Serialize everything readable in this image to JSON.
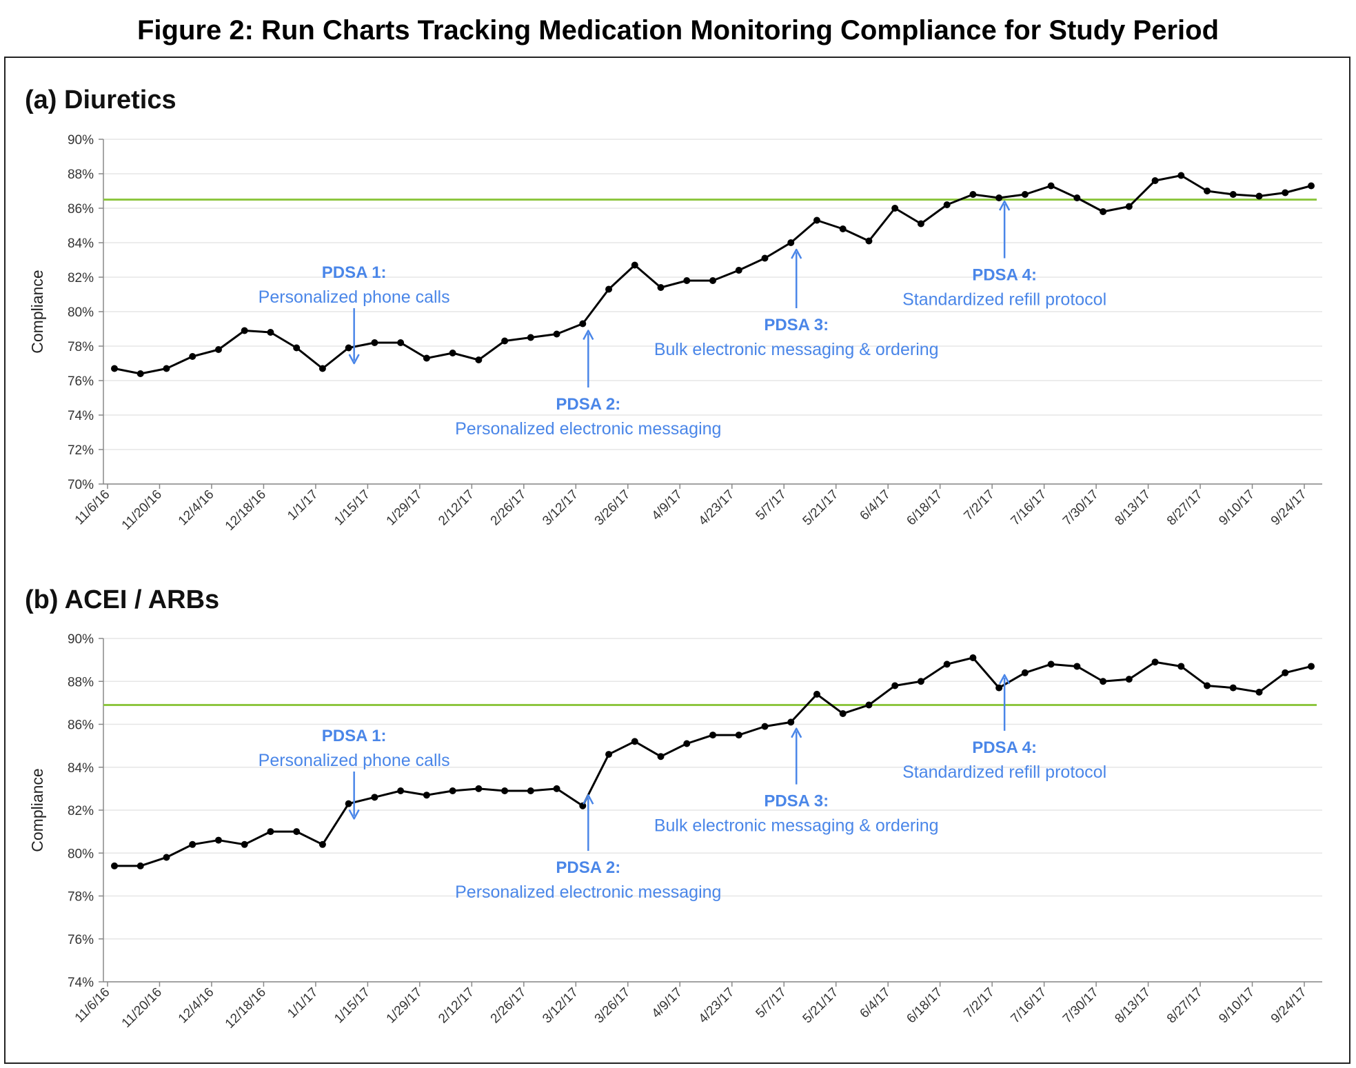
{
  "figure_title": "Figure 2: Run Charts Tracking Medication Monitoring Compliance for Study Period",
  "colors": {
    "series": "#000000",
    "target_line": "#8dc63f",
    "annotation": "#4a86e8",
    "grid": "#e6e6e6"
  },
  "chart_data": [
    {
      "type": "line",
      "title": "(a) Diuretics",
      "ylabel": "Compliance",
      "xlabel": "",
      "ylim": [
        70,
        90
      ],
      "y_ticks": [
        70,
        72,
        74,
        76,
        78,
        80,
        82,
        84,
        86,
        88,
        90
      ],
      "y_tick_labels": [
        "70%",
        "72%",
        "74%",
        "76%",
        "78%",
        "80%",
        "82%",
        "84%",
        "86%",
        "88%",
        "90%"
      ],
      "x": [
        "11/6/16",
        "11/13/16",
        "11/20/16",
        "11/27/16",
        "12/4/16",
        "12/11/16",
        "12/18/16",
        "12/25/16",
        "1/1/17",
        "1/8/17",
        "1/15/17",
        "1/22/17",
        "1/29/17",
        "2/5/17",
        "2/12/17",
        "2/19/17",
        "2/26/17",
        "3/5/17",
        "3/12/17",
        "3/19/17",
        "3/26/17",
        "4/2/17",
        "4/9/17",
        "4/16/17",
        "4/23/17",
        "4/30/17",
        "5/7/17",
        "5/14/17",
        "5/21/17",
        "5/28/17",
        "6/4/17",
        "6/11/17",
        "6/18/17",
        "6/25/17",
        "7/2/17",
        "7/9/17",
        "7/16/17",
        "7/23/17",
        "7/30/17",
        "8/6/17",
        "8/13/17",
        "8/20/17",
        "8/27/17",
        "9/3/17",
        "9/10/17",
        "9/17/17",
        "9/24/17"
      ],
      "x_tick_labels": [
        "11/6/16",
        "11/20/16",
        "12/4/16",
        "12/18/16",
        "1/1/17",
        "1/15/17",
        "1/29/17",
        "2/12/17",
        "2/26/17",
        "3/12/17",
        "3/26/17",
        "4/9/17",
        "4/23/17",
        "5/7/17",
        "5/21/17",
        "6/4/17",
        "6/18/17",
        "7/2/17",
        "7/16/17",
        "7/30/17",
        "8/13/17",
        "8/27/17",
        "9/10/17",
        "9/24/17"
      ],
      "series": [
        {
          "values": [
            76.7,
            76.4,
            76.7,
            77.4,
            77.8,
            78.9,
            78.8,
            77.9,
            76.7,
            77.9,
            78.2,
            78.2,
            77.3,
            77.6,
            77.2,
            78.3,
            78.5,
            78.7,
            79.3,
            81.3,
            82.7,
            81.4,
            81.8,
            81.8,
            82.4,
            83.1,
            84.0,
            85.3,
            84.8,
            84.1,
            86.0,
            85.1,
            86.2,
            86.8,
            86.6,
            86.8,
            87.3,
            86.6,
            85.8,
            86.1,
            87.6,
            87.9,
            87.0,
            86.8,
            86.7,
            86.9,
            87.3
          ]
        }
      ],
      "target_line": 86.5,
      "grid": true,
      "annotations": [
        {
          "title": "PDSA 1:",
          "text": "Personalized phone calls",
          "date": "1/8/17",
          "arrow_tip_value": 77.0,
          "arrow_tail_value": 80.2,
          "label_position": "above"
        },
        {
          "title": "PDSA 2:",
          "text": "Personalized electronic messaging",
          "date": "3/12/17",
          "arrow_tip_value": 78.9,
          "arrow_tail_value": 75.6,
          "label_position": "below"
        },
        {
          "title": "PDSA 3:",
          "text": "Bulk electronic messaging & ordering",
          "date": "5/7/17",
          "arrow_tip_value": 83.6,
          "arrow_tail_value": 80.2,
          "label_position": "below"
        },
        {
          "title": "PDSA 4:",
          "text": "Standardized refill protocol",
          "date": "7/2/17",
          "arrow_tip_value": 86.4,
          "arrow_tail_value": 83.1,
          "label_position": "below"
        }
      ]
    },
    {
      "type": "line",
      "title": "(b) ACEI / ARBs",
      "ylabel": "Compliance",
      "xlabel": "",
      "ylim": [
        74,
        90
      ],
      "y_ticks": [
        74,
        76,
        78,
        80,
        82,
        84,
        86,
        88,
        90
      ],
      "y_tick_labels": [
        "74%",
        "76%",
        "78%",
        "80%",
        "82%",
        "84%",
        "86%",
        "88%",
        "90%"
      ],
      "x": [
        "11/6/16",
        "11/13/16",
        "11/20/16",
        "11/27/16",
        "12/4/16",
        "12/11/16",
        "12/18/16",
        "12/25/16",
        "1/1/17",
        "1/8/17",
        "1/15/17",
        "1/22/17",
        "1/29/17",
        "2/5/17",
        "2/12/17",
        "2/19/17",
        "2/26/17",
        "3/5/17",
        "3/12/17",
        "3/19/17",
        "3/26/17",
        "4/2/17",
        "4/9/17",
        "4/16/17",
        "4/23/17",
        "4/30/17",
        "5/7/17",
        "5/14/17",
        "5/21/17",
        "5/28/17",
        "6/4/17",
        "6/11/17",
        "6/18/17",
        "6/25/17",
        "7/2/17",
        "7/9/17",
        "7/16/17",
        "7/23/17",
        "7/30/17",
        "8/6/17",
        "8/13/17",
        "8/20/17",
        "8/27/17",
        "9/3/17",
        "9/10/17",
        "9/17/17",
        "9/24/17"
      ],
      "x_tick_labels": [
        "11/6/16",
        "11/20/16",
        "12/4/16",
        "12/18/16",
        "1/1/17",
        "1/15/17",
        "1/29/17",
        "2/12/17",
        "2/26/17",
        "3/12/17",
        "3/26/17",
        "4/9/17",
        "4/23/17",
        "5/7/17",
        "5/21/17",
        "6/4/17",
        "6/18/17",
        "7/2/17",
        "7/16/17",
        "7/30/17",
        "8/13/17",
        "8/27/17",
        "9/10/17",
        "9/24/17"
      ],
      "series": [
        {
          "values": [
            79.4,
            79.4,
            79.8,
            80.4,
            80.6,
            80.4,
            81.0,
            81.0,
            80.4,
            82.3,
            82.6,
            82.9,
            82.7,
            82.9,
            83.0,
            82.9,
            82.9,
            83.0,
            82.2,
            84.6,
            85.2,
            84.5,
            85.1,
            85.5,
            85.5,
            85.9,
            86.1,
            87.4,
            86.5,
            86.9,
            87.8,
            88.0,
            88.8,
            89.1,
            87.7,
            88.4,
            88.8,
            88.7,
            88.0,
            88.1,
            88.9,
            88.7,
            87.8,
            87.7,
            87.5,
            88.4,
            88.7
          ]
        }
      ],
      "target_line": 86.9,
      "grid": true,
      "annotations": [
        {
          "title": "PDSA 1:",
          "text": "Personalized phone calls",
          "date": "1/8/17",
          "arrow_tip_value": 81.6,
          "arrow_tail_value": 83.8,
          "label_position": "above"
        },
        {
          "title": "PDSA 2:",
          "text": "Personalized electronic messaging",
          "date": "3/12/17",
          "arrow_tip_value": 82.7,
          "arrow_tail_value": 80.1,
          "label_position": "below"
        },
        {
          "title": "PDSA 3:",
          "text": "Bulk electronic messaging & ordering",
          "date": "5/7/17",
          "arrow_tip_value": 85.8,
          "arrow_tail_value": 83.2,
          "label_position": "below"
        },
        {
          "title": "PDSA 4:",
          "text": "Standardized refill protocol",
          "date": "7/2/17",
          "arrow_tip_value": 88.3,
          "arrow_tail_value": 85.7,
          "label_position": "below"
        }
      ]
    }
  ]
}
